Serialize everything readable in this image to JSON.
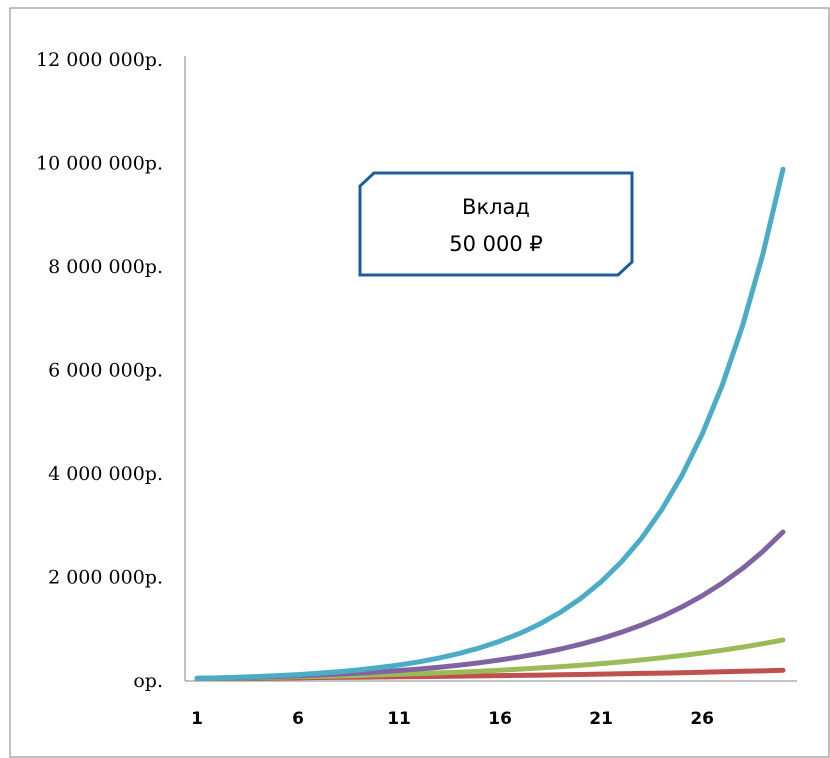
{
  "chart_data": {
    "type": "line",
    "title": "",
    "xlabel": "",
    "ylabel": "",
    "x": [
      1,
      2,
      3,
      4,
      5,
      6,
      7,
      8,
      9,
      10,
      11,
      12,
      13,
      14,
      15,
      16,
      17,
      18,
      19,
      20,
      21,
      22,
      23,
      24,
      25,
      26,
      27,
      28,
      29,
      30
    ],
    "xticks": [
      "1",
      "6",
      "11",
      "16",
      "21",
      "26"
    ],
    "xlim": [
      1,
      30
    ],
    "yticks": [
      "ор.",
      "2 000 000р.",
      "4 000 000р.",
      "6 000 000р.",
      "8 000 000р.",
      "10 000 000р.",
      "12 000 000р."
    ],
    "ytick_values": [
      0,
      2000000,
      4000000,
      6000000,
      8000000,
      10000000,
      12000000
    ],
    "ylim": [
      0,
      12000000
    ],
    "grid": false,
    "legend": "none",
    "series": [
      {
        "color": "#4bacc6",
        "growth": 1.2,
        "start": 50000
      },
      {
        "color": "#8064a2",
        "growth": 1.15,
        "start": 50000
      },
      {
        "color": "#9bbb59",
        "growth": 1.1,
        "start": 50000
      },
      {
        "color": "#c0504d",
        "growth": 1.05,
        "start": 50000
      }
    ],
    "annotation": {
      "line1": "Вклад",
      "line2": "50 000 ₽",
      "border_color": "#1f5c99"
    }
  }
}
